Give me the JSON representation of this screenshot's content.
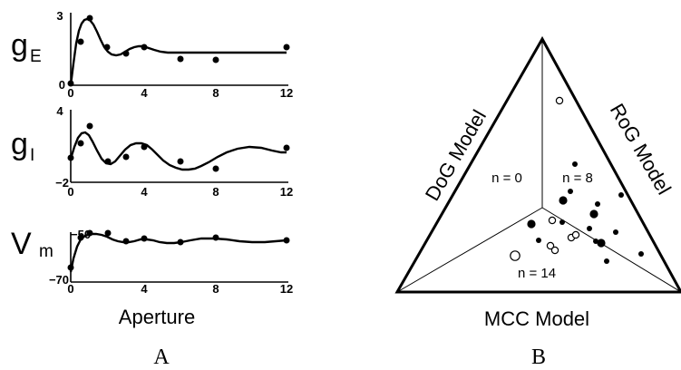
{
  "panel_labels": {
    "left": "A",
    "right": "B"
  },
  "panel_a": {
    "xlabel": "Aperture",
    "x_ticks": [
      "0",
      "4",
      "8",
      "12"
    ],
    "subplots": [
      {
        "ylabel_main": "g",
        "ylabel_sub": "E",
        "y_top_label": "3",
        "y_bottom_label": "0",
        "ylim": [
          0,
          3
        ],
        "points": [
          [
            0,
            0
          ],
          [
            0.5,
            1.75
          ],
          [
            1,
            2.8
          ],
          [
            2,
            1.5
          ],
          [
            3,
            1.25
          ],
          [
            4,
            1.5
          ],
          [
            6,
            1.05
          ],
          [
            8,
            1.0
          ],
          [
            12,
            1.55
          ]
        ],
        "curve": "t => 1.3*(1-Math.exp(-3*t)) + 1.8*Math.exp(-0.6*t)*Math.sin(1.8*t)"
      },
      {
        "ylabel_main": "g",
        "ylabel_sub": "I",
        "y_top_label": "4",
        "y_bottom_label": "−2",
        "ylim": [
          -2,
          4
        ],
        "points": [
          [
            0,
            0
          ],
          [
            0.5,
            1.5
          ],
          [
            1,
            3.2
          ],
          [
            2,
            -0.4
          ],
          [
            3,
            0.2
          ],
          [
            4,
            1
          ],
          [
            6,
            -0.3
          ],
          [
            8,
            -1
          ],
          [
            12,
            1.2
          ]
        ],
        "curve": "t => 2.5*(1-Math.exp(-3*t))*Math.exp(-0.12*t)*Math.cos(1.3*(t-1.2))"
      },
      {
        "ylabel_main": "V",
        "ylabel_sub": "m",
        "y_top_label": "−50",
        "y_bottom_label": "−70",
        "ylim": [
          -70,
          -50
        ],
        "points": [
          [
            0,
            -66
          ],
          [
            0.5,
            -59
          ],
          [
            1,
            -58
          ],
          [
            2,
            -58
          ],
          [
            3,
            -60.5
          ],
          [
            4,
            -60
          ],
          [
            6,
            -60.5
          ],
          [
            8,
            -59.5
          ],
          [
            12,
            -60.5
          ]
        ],
        "curve": "t => -60 + (1-Math.exp(-3*t))*(-4+... )"
      }
    ]
  },
  "panel_b": {
    "sides": {
      "left": "DoG Model",
      "right": "RoG Model",
      "bottom": "MCC Model"
    },
    "counts": {
      "dog": "n = 0",
      "rog": "n = 8",
      "mcc": "n = 14"
    },
    "points": [
      {
        "b": 0.1,
        "c": 0.9,
        "filled": false,
        "size": "small"
      },
      {
        "b": 0.45,
        "c": 0.3,
        "filled": true,
        "size": "small"
      },
      {
        "b": 0.6,
        "c": 0.3,
        "filled": true,
        "size": "large"
      },
      {
        "b": 0.62,
        "c": 0.2,
        "filled": true,
        "size": "small"
      }
    ]
  }
}
